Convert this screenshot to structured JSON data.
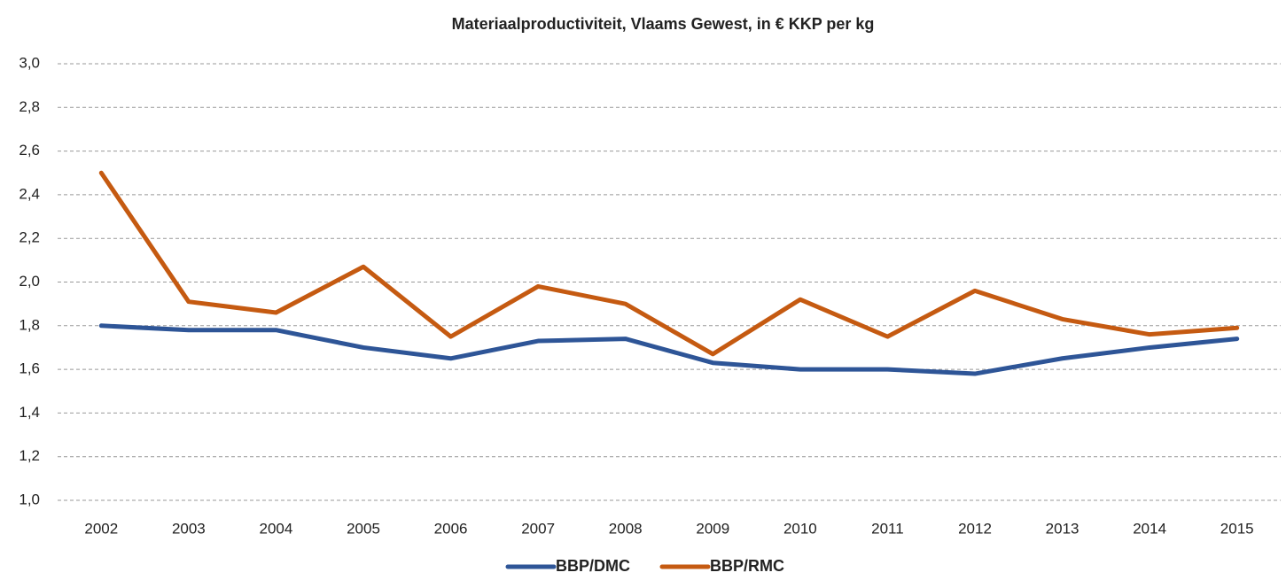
{
  "chart_data": {
    "type": "line",
    "title": "Materiaalproductiviteit, Vlaams Gewest, in € KKP per kg",
    "categories": [
      "2002",
      "2003",
      "2004",
      "2005",
      "2006",
      "2007",
      "2008",
      "2009",
      "2010",
      "2011",
      "2012",
      "2013",
      "2014",
      "2015"
    ],
    "series": [
      {
        "name": "BBP/DMC",
        "color": "#2e5597",
        "values": [
          1.8,
          1.78,
          1.78,
          1.7,
          1.65,
          1.73,
          1.74,
          1.63,
          1.6,
          1.6,
          1.58,
          1.65,
          1.7,
          1.74
        ]
      },
      {
        "name": "BBP/RMC",
        "color": "#c55a11",
        "values": [
          2.5,
          1.91,
          1.86,
          2.07,
          1.75,
          1.98,
          1.9,
          1.67,
          1.92,
          1.75,
          1.96,
          1.83,
          1.76,
          1.79
        ]
      }
    ],
    "ylim": [
      1.0,
      3.0
    ],
    "yticks": [
      {
        "value": 1.0,
        "label": "1,0"
      },
      {
        "value": 1.2,
        "label": "1,2"
      },
      {
        "value": 1.4,
        "label": "1,4"
      },
      {
        "value": 1.6,
        "label": "1,6"
      },
      {
        "value": 1.8,
        "label": "1,8"
      },
      {
        "value": 2.0,
        "label": "2,0"
      },
      {
        "value": 2.2,
        "label": "2,2"
      },
      {
        "value": 2.4,
        "label": "2,4"
      },
      {
        "value": 2.6,
        "label": "2,6"
      },
      {
        "value": 2.8,
        "label": "2,8"
      },
      {
        "value": 3.0,
        "label": "3,0"
      }
    ],
    "grid": true,
    "legend": "bottom"
  }
}
